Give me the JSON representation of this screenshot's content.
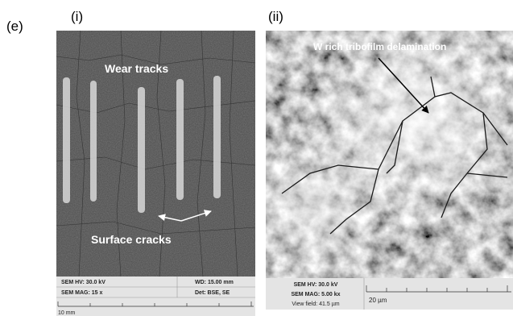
{
  "panel_label": "(e)",
  "left": {
    "label": "(i)",
    "annotations": [
      "Wear tracks",
      "Surface cracks"
    ],
    "info": {
      "hv": "SEM HV: 30.0 kV",
      "wd": "WD: 15.00 mm",
      "mag": "SEM MAG: 15 x",
      "det": "Det: BSE, SE",
      "scale": "10 mm"
    }
  },
  "right": {
    "label": "(ii)",
    "annotations": [
      "W rich tribofilm delamination"
    ],
    "info": {
      "hv": "SEM HV: 30.0 kV",
      "mag": "SEM MAG: 5.00 kx",
      "field": "View field: 41.5 µm",
      "scale": "20 µm"
    }
  }
}
